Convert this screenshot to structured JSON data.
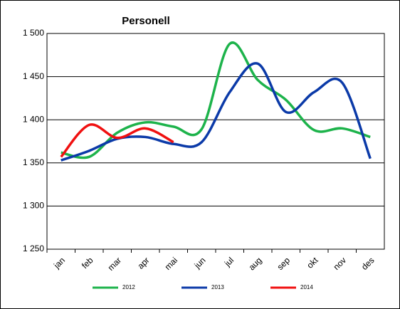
{
  "chart_data": {
    "type": "line",
    "title": "Personell",
    "categories": [
      "jan",
      "feb",
      "mar",
      "apr",
      "mai",
      "jun",
      "jul",
      "aug",
      "sep",
      "okt",
      "nov",
      "des"
    ],
    "series": [
      {
        "name": "2012",
        "color": "#1db34b",
        "values": [
          1362,
          1357,
          1385,
          1397,
          1392,
          1389,
          1488,
          1446,
          1423,
          1388,
          1390,
          1380
        ]
      },
      {
        "name": "2013",
        "color": "#0b3aa8",
        "values": [
          1353,
          1364,
          1378,
          1380,
          1372,
          1374,
          1432,
          1465,
          1409,
          1432,
          1443,
          1355
        ]
      },
      {
        "name": "2014",
        "color": "#f01010",
        "values": [
          1357,
          1394,
          1379,
          1390,
          1374,
          null,
          null,
          null,
          null,
          null,
          null,
          null
        ]
      }
    ],
    "ylim": [
      1250,
      1500
    ],
    "yticks": [
      {
        "value": 1250,
        "label": "1 250"
      },
      {
        "value": 1300,
        "label": "1 300"
      },
      {
        "value": 1350,
        "label": "1 350"
      },
      {
        "value": 1400,
        "label": "1 400"
      },
      {
        "value": 1450,
        "label": "1 450"
      },
      {
        "value": 1500,
        "label": "1 500"
      }
    ],
    "grid": true,
    "legend": "bottom"
  }
}
